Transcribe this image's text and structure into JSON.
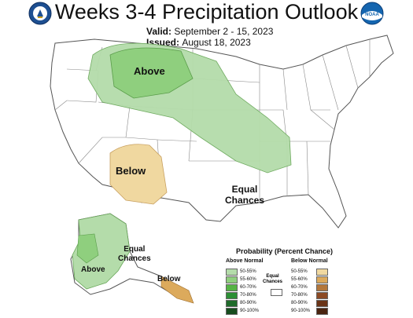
{
  "header": {
    "title": "Weeks 3-4 Precipitation Outlook",
    "valid_label": "Valid:",
    "valid_value": "September 2 - 15, 2023",
    "issued_label": "Issued:",
    "issued_value": "August 18, 2023"
  },
  "logos": {
    "left": "doc-seal-icon",
    "right": "noaa-logo-icon",
    "right_text": "NOAA"
  },
  "map_labels": {
    "above_main": "Above",
    "below_main": "Below",
    "equal_main_1": "Equal",
    "equal_main_2": "Chances",
    "alaska_above": "Above",
    "alaska_equal_1": "Equal",
    "alaska_equal_2": "Chances",
    "alaska_below": "Below"
  },
  "legend": {
    "title": "Probability (Percent Chance)",
    "above_header": "Above Normal",
    "below_header": "Below Normal",
    "equal_1": "Equal",
    "equal_2": "Chances",
    "above_items": [
      {
        "label": "50-55%",
        "color": "#b4dcaa"
      },
      {
        "label": "55-60%",
        "color": "#8fcf7e"
      },
      {
        "label": "60-70%",
        "color": "#56b445"
      },
      {
        "label": "70-80%",
        "color": "#2c8f35"
      },
      {
        "label": "80-90%",
        "color": "#1f6b2a"
      },
      {
        "label": "90-100%",
        "color": "#174d1e"
      }
    ],
    "below_items": [
      {
        "label": "50-55%",
        "color": "#f0d8a0"
      },
      {
        "label": "55-60%",
        "color": "#dcaa5c"
      },
      {
        "label": "60-70%",
        "color": "#b4783c"
      },
      {
        "label": "70-80%",
        "color": "#8c4a24"
      },
      {
        "label": "80-90%",
        "color": "#6a3418"
      },
      {
        "label": "90-100%",
        "color": "#4a2410"
      }
    ]
  }
}
